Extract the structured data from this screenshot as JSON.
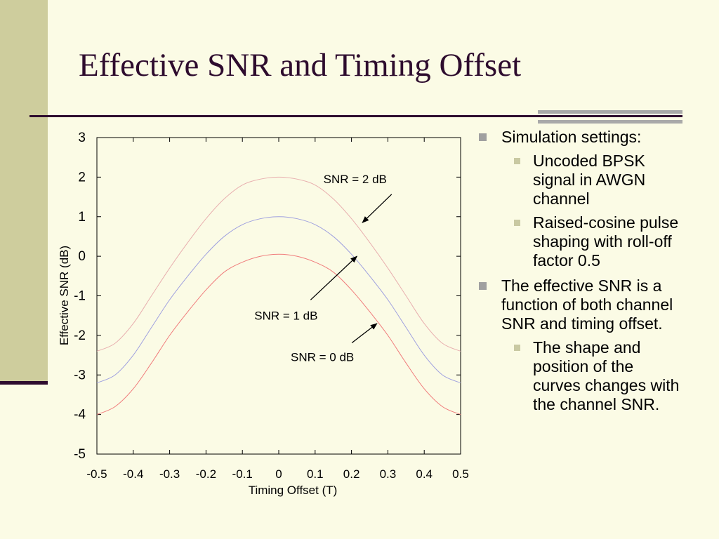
{
  "slide": {
    "title": "Effective SNR and Timing Offset",
    "bullets": [
      {
        "text": "Simulation settings:",
        "sub": [
          "Uncoded BPSK signal in AWGN channel",
          "Raised-cosine pulse shaping with roll-off factor 0.5"
        ]
      },
      {
        "text": "The effective SNR is a function of both channel SNR and timing offset.",
        "sub": [
          "The shape and position of the curves changes with the channel SNR."
        ]
      }
    ]
  },
  "chart_data": {
    "type": "line",
    "title": "",
    "xlabel": "Timing Offset (T)",
    "ylabel": "Effective SNR (dB)",
    "xlim": [
      -0.5,
      0.5
    ],
    "ylim": [
      -5,
      3
    ],
    "xticks": [
      "-0.5",
      "-0.4",
      "-0.3",
      "-0.2",
      "-0.1",
      "0",
      "0.1",
      "0.2",
      "0.3",
      "0.4",
      "0.5"
    ],
    "yticks": [
      "3",
      "2",
      "1",
      "0",
      "-1",
      "-2",
      "-3",
      "-4",
      "-5"
    ],
    "x": [
      -0.5,
      -0.45,
      -0.4,
      -0.35,
      -0.3,
      -0.25,
      -0.2,
      -0.15,
      -0.1,
      -0.05,
      0,
      0.05,
      0.1,
      0.15,
      0.2,
      0.25,
      0.3,
      0.35,
      0.4,
      0.45,
      0.5
    ],
    "series": [
      {
        "color": "#E8AFAF",
        "values": [
          -2.4,
          -2.2,
          -1.7,
          -1.0,
          -0.3,
          0.35,
          0.95,
          1.45,
          1.8,
          1.95,
          2.0,
          1.95,
          1.8,
          1.45,
          0.95,
          0.35,
          -0.3,
          -1.0,
          -1.7,
          -2.2,
          -2.4
        ]
      },
      {
        "color": "#9FA0DF",
        "values": [
          -3.2,
          -3.0,
          -2.5,
          -1.8,
          -1.1,
          -0.5,
          0.05,
          0.5,
          0.8,
          0.95,
          1.0,
          0.95,
          0.8,
          0.5,
          0.05,
          -0.5,
          -1.1,
          -1.8,
          -2.5,
          -3.0,
          -3.2
        ]
      },
      {
        "color": "#F07C7C",
        "values": [
          -4.0,
          -3.8,
          -3.35,
          -2.7,
          -2.0,
          -1.4,
          -0.85,
          -0.4,
          -0.15,
          0.0,
          0.05,
          0.0,
          -0.15,
          -0.4,
          -0.85,
          -1.4,
          -2.0,
          -2.7,
          -3.35,
          -3.8,
          -4.0
        ]
      }
    ],
    "annotations": [
      {
        "text": "SNR = 2 dB",
        "x": 0.21,
        "y": 1.85,
        "arrow_to": [
          0.23,
          0.85
        ]
      },
      {
        "text": "SNR = 1 dB",
        "x": 0.02,
        "y": -1.6,
        "arrow_to": [
          0.215,
          0.0
        ]
      },
      {
        "text": "SNR = 0 dB",
        "x": 0.12,
        "y": -2.65,
        "arrow_to": [
          0.27,
          -1.7
        ]
      }
    ]
  }
}
